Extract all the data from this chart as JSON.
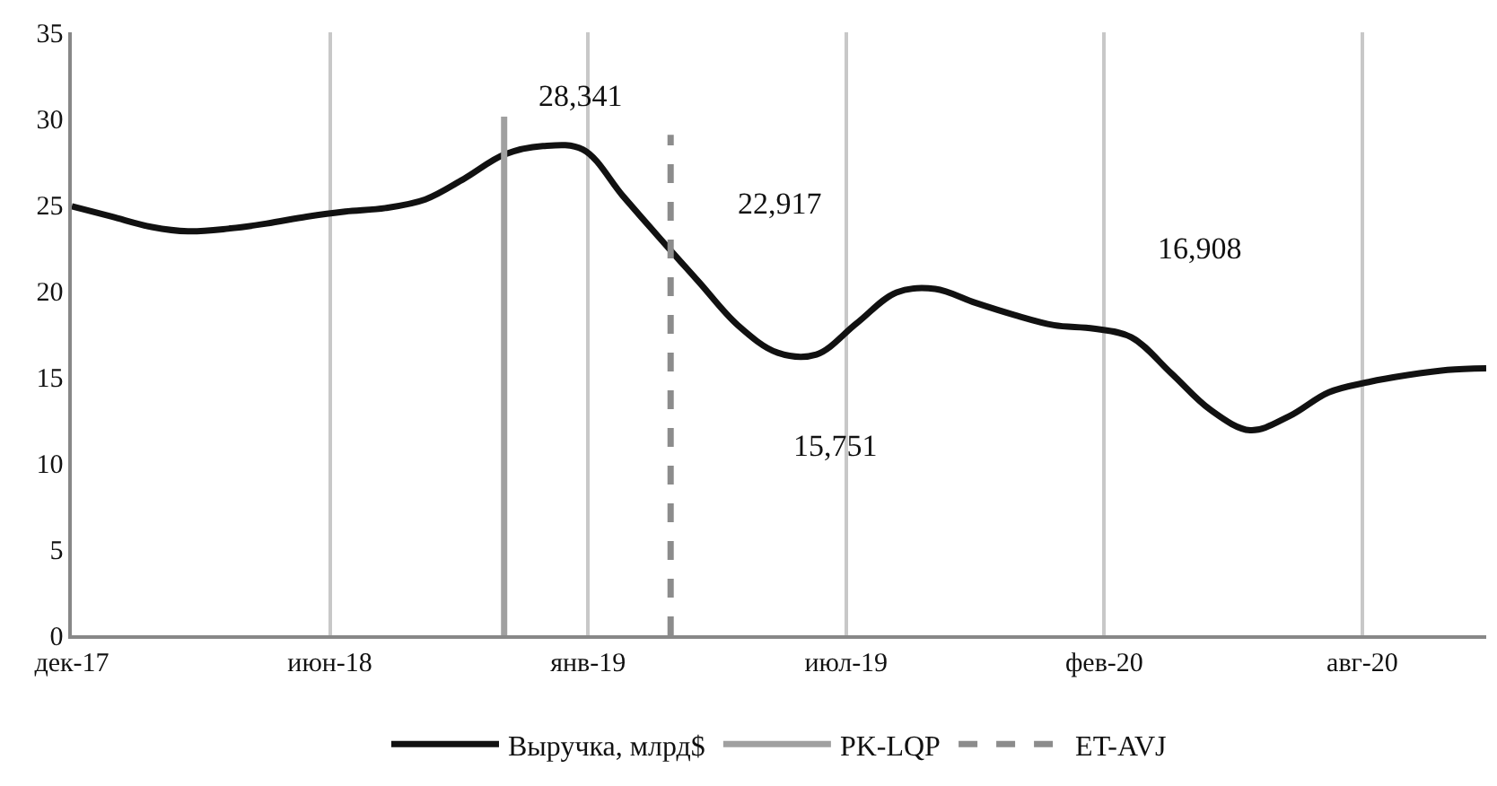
{
  "chart_data": {
    "type": "line",
    "x": [
      "2017-12",
      "2018-01",
      "2018-02",
      "2018-03",
      "2018-04",
      "2018-05",
      "2018-06",
      "2018-07",
      "2018-08",
      "2018-09",
      "2018-10",
      "2018-11",
      "2018-12",
      "2019-01",
      "2019-02",
      "2019-03",
      "2019-04",
      "2019-05",
      "2019-06",
      "2019-07",
      "2019-08",
      "2019-09",
      "2019-10",
      "2019-11",
      "2019-12",
      "2020-01",
      "2020-02",
      "2020-03",
      "2020-04",
      "2020-05",
      "2020-06",
      "2020-07",
      "2020-08",
      "2020-09",
      "2020-10",
      "2020-11",
      "2020-12"
    ],
    "series": [
      {
        "name": "Выручка, млрд$",
        "color": "#111111",
        "values": [
          24.9,
          24.3,
          23.7,
          23.45,
          23.6,
          23.9,
          24.3,
          24.6,
          24.8,
          25.3,
          26.5,
          27.9,
          28.4,
          28.2,
          25.5,
          23.1,
          20.5,
          18.0,
          16.4,
          16.3,
          18.1,
          19.9,
          20.1,
          19.3,
          18.6,
          18.0,
          17.8,
          17.3,
          15.2,
          13.1,
          11.9,
          12.7,
          14.1,
          14.7,
          15.1,
          15.4,
          15.5
        ]
      }
    ],
    "ref_lines": [
      {
        "axis": "x",
        "value": "2018-11-01",
        "label": "PK-LQP",
        "color": "#a0a0a0",
        "line_style": "solid"
      },
      {
        "axis": "x",
        "value": "2019-03-10",
        "label": "ET-AVJ",
        "color": "#8c8c8c",
        "line_style": "dashed"
      }
    ],
    "xlim": [
      "2017-12-01",
      "2020-12-01"
    ],
    "xticks": [
      {
        "value": "2017-12-01",
        "label": "дек-17"
      },
      {
        "value": "2018-06-19",
        "label": "июн-18"
      },
      {
        "value": "2019-01-05",
        "label": "янв-19"
      },
      {
        "value": "2019-07-24",
        "label": "июл-19"
      },
      {
        "value": "2020-02-09",
        "label": "фев-20"
      },
      {
        "value": "2020-08-27",
        "label": "авг-20"
      }
    ],
    "ylim": [
      0,
      35
    ],
    "yticks": [
      0,
      5,
      10,
      15,
      20,
      25,
      30,
      35
    ],
    "grid": "x",
    "legend": "bottom",
    "annotations": [
      "28,341",
      "22,917",
      "16,908",
      "15,751"
    ]
  }
}
